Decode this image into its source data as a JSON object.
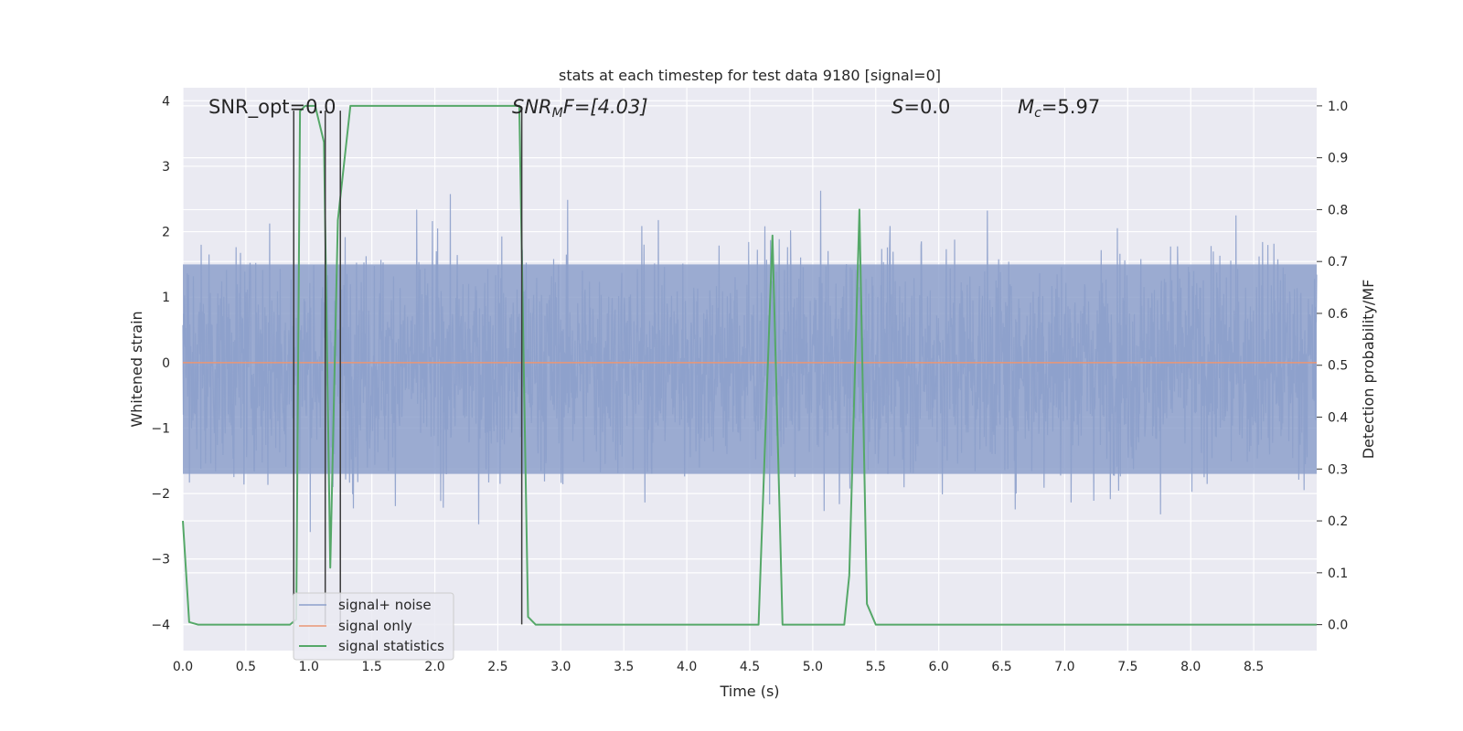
{
  "chart_data": {
    "type": "line",
    "title": "stats at each timestep for test data 9180 [signal=0]",
    "xlabel": "Time (s)",
    "ylabel": "Whitened strain",
    "y2label": "Detection probability/MF",
    "xlim": [
      0,
      9.0
    ],
    "ylim": [
      -4.4,
      4.2
    ],
    "y2lim": [
      -0.05,
      1.035
    ],
    "xticks": [
      0.0,
      0.5,
      1.0,
      1.5,
      2.0,
      2.5,
      3.0,
      3.5,
      4.0,
      4.5,
      5.0,
      5.5,
      6.0,
      6.5,
      7.0,
      7.5,
      8.0,
      8.5
    ],
    "xtick_labels": [
      "0.0",
      "0.5",
      "1.0",
      "1.5",
      "2.0",
      "2.5",
      "3.0",
      "3.5",
      "4.0",
      "4.5",
      "5.0",
      "5.5",
      "6.0",
      "6.5",
      "7.0",
      "7.5",
      "8.0",
      "8.5"
    ],
    "yticks": [
      -4,
      -3,
      -2,
      -1,
      0,
      1,
      2,
      3,
      4
    ],
    "ytick_labels": [
      "−4",
      "−3",
      "−2",
      "−1",
      "0",
      "1",
      "2",
      "3",
      "4"
    ],
    "y2ticks": [
      0.0,
      0.1,
      0.2,
      0.3,
      0.4,
      0.5,
      0.6,
      0.7,
      0.8,
      0.9,
      1.0
    ],
    "y2tick_labels": [
      "0.0",
      "0.1",
      "0.2",
      "0.3",
      "0.4",
      "0.5",
      "0.6",
      "0.7",
      "0.8",
      "0.9",
      "1.0"
    ],
    "grid": true,
    "legend_position": "lower-left",
    "annotations": {
      "snr_opt": "SNR_opt=0.0",
      "snr_mf_main": "SNR",
      "snr_mf_sub": "M",
      "snr_mf_rest": "F=[4.03]",
      "s_main": "S",
      "s_rest": "=0.0",
      "mc_main": "M",
      "mc_sub": "c",
      "mc_rest": "=5.97"
    },
    "series": [
      {
        "name": "signal+ noise",
        "color": "#8da0cb",
        "axis": "left",
        "kind": "noise",
        "x_range": [
          0,
          9.0
        ],
        "band": [
          -1.7,
          1.5
        ],
        "envelope": [
          -3.6,
          3.8
        ]
      },
      {
        "name": "signal only",
        "color": "#e99675",
        "axis": "left",
        "x": [
          0,
          9.0
        ],
        "y": [
          0,
          0
        ]
      },
      {
        "name": "signal statistics",
        "color": "#55a868",
        "axis": "right",
        "x": [
          0.0,
          0.05,
          0.12,
          0.85,
          0.9,
          0.93,
          0.97,
          1.05,
          1.12,
          1.17,
          1.23,
          1.33,
          2.67,
          2.74,
          2.8,
          4.57,
          4.68,
          4.76,
          5.25,
          5.29,
          5.37,
          5.43,
          5.5,
          9.0
        ],
        "y": [
          0.2,
          0.005,
          0.0,
          0.0,
          0.01,
          0.99,
          1.0,
          1.0,
          0.93,
          0.11,
          0.78,
          1.0,
          1.0,
          0.015,
          0.0,
          0.0,
          0.75,
          0.0,
          0.0,
          0.095,
          0.8,
          0.04,
          0.0,
          0.0
        ]
      }
    ],
    "vertical_lines": {
      "color": "#3a3a3a",
      "axis": "left",
      "x": [
        0.88,
        1.13,
        1.25,
        2.69
      ],
      "y_from": -4.0,
      "y_to": 3.85
    }
  }
}
